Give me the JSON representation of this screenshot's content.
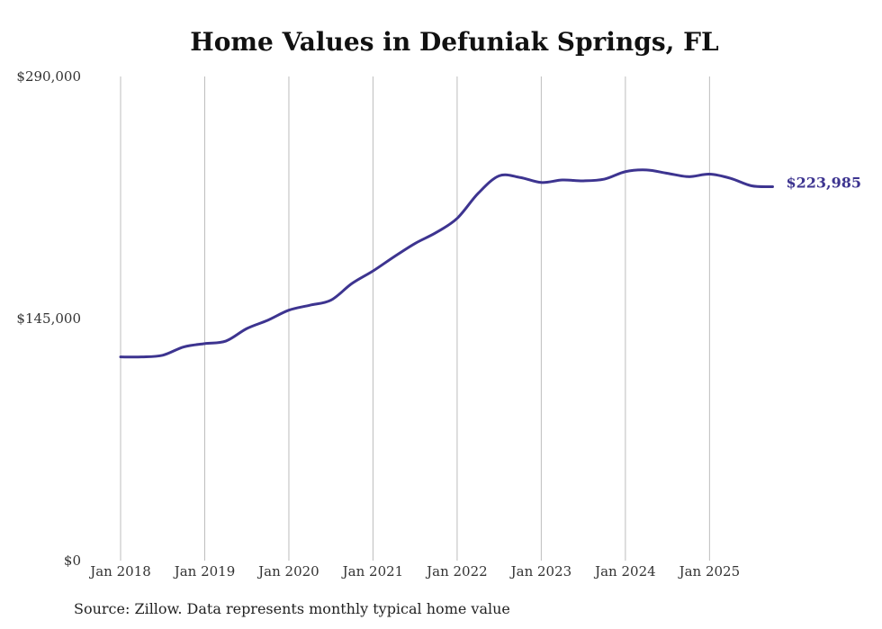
{
  "chart_data": {
    "type": "line",
    "title": "Home Values in Defuniak Springs, FL",
    "source": "Source: Zillow. Data represents monthly typical home value",
    "xlabel": "",
    "ylabel": "",
    "ylim": [
      0,
      290000
    ],
    "y_ticks": [
      {
        "value": 0,
        "label": "$0"
      },
      {
        "value": 145000,
        "label": "$145,000"
      },
      {
        "value": 290000,
        "label": "$290,000"
      }
    ],
    "x_ticks": [
      {
        "t": 0,
        "label": "Jan 2018"
      },
      {
        "t": 12,
        "label": "Jan 2019"
      },
      {
        "t": 24,
        "label": "Jan 2020"
      },
      {
        "t": 36,
        "label": "Jan 2021"
      },
      {
        "t": 48,
        "label": "Jan 2022"
      },
      {
        "t": 60,
        "label": "Jan 2023"
      },
      {
        "t": 72,
        "label": "Jan 2024"
      },
      {
        "t": 84,
        "label": "Jan 2025"
      }
    ],
    "x_range": [
      0,
      96
    ],
    "grid": "vertical",
    "series": [
      {
        "name": "Typical home value",
        "color": "#3d3490",
        "end_label": "$223,985",
        "points": [
          [
            0,
            122000
          ],
          [
            3,
            122000
          ],
          [
            6,
            123000
          ],
          [
            9,
            128000
          ],
          [
            12,
            130000
          ],
          [
            15,
            131500
          ],
          [
            18,
            139000
          ],
          [
            21,
            144000
          ],
          [
            24,
            150000
          ],
          [
            27,
            153000
          ],
          [
            30,
            156000
          ],
          [
            33,
            166000
          ],
          [
            36,
            173500
          ],
          [
            39,
            182000
          ],
          [
            42,
            190000
          ],
          [
            45,
            196500
          ],
          [
            48,
            205000
          ],
          [
            51,
            220000
          ],
          [
            54,
            230500
          ],
          [
            57,
            229500
          ],
          [
            60,
            226500
          ],
          [
            63,
            228000
          ],
          [
            66,
            227500
          ],
          [
            69,
            228500
          ],
          [
            72,
            233000
          ],
          [
            75,
            234000
          ],
          [
            78,
            232000
          ],
          [
            81,
            230000
          ],
          [
            84,
            231500
          ],
          [
            87,
            229000
          ],
          [
            90,
            224500
          ],
          [
            93,
            223985
          ]
        ]
      }
    ]
  }
}
